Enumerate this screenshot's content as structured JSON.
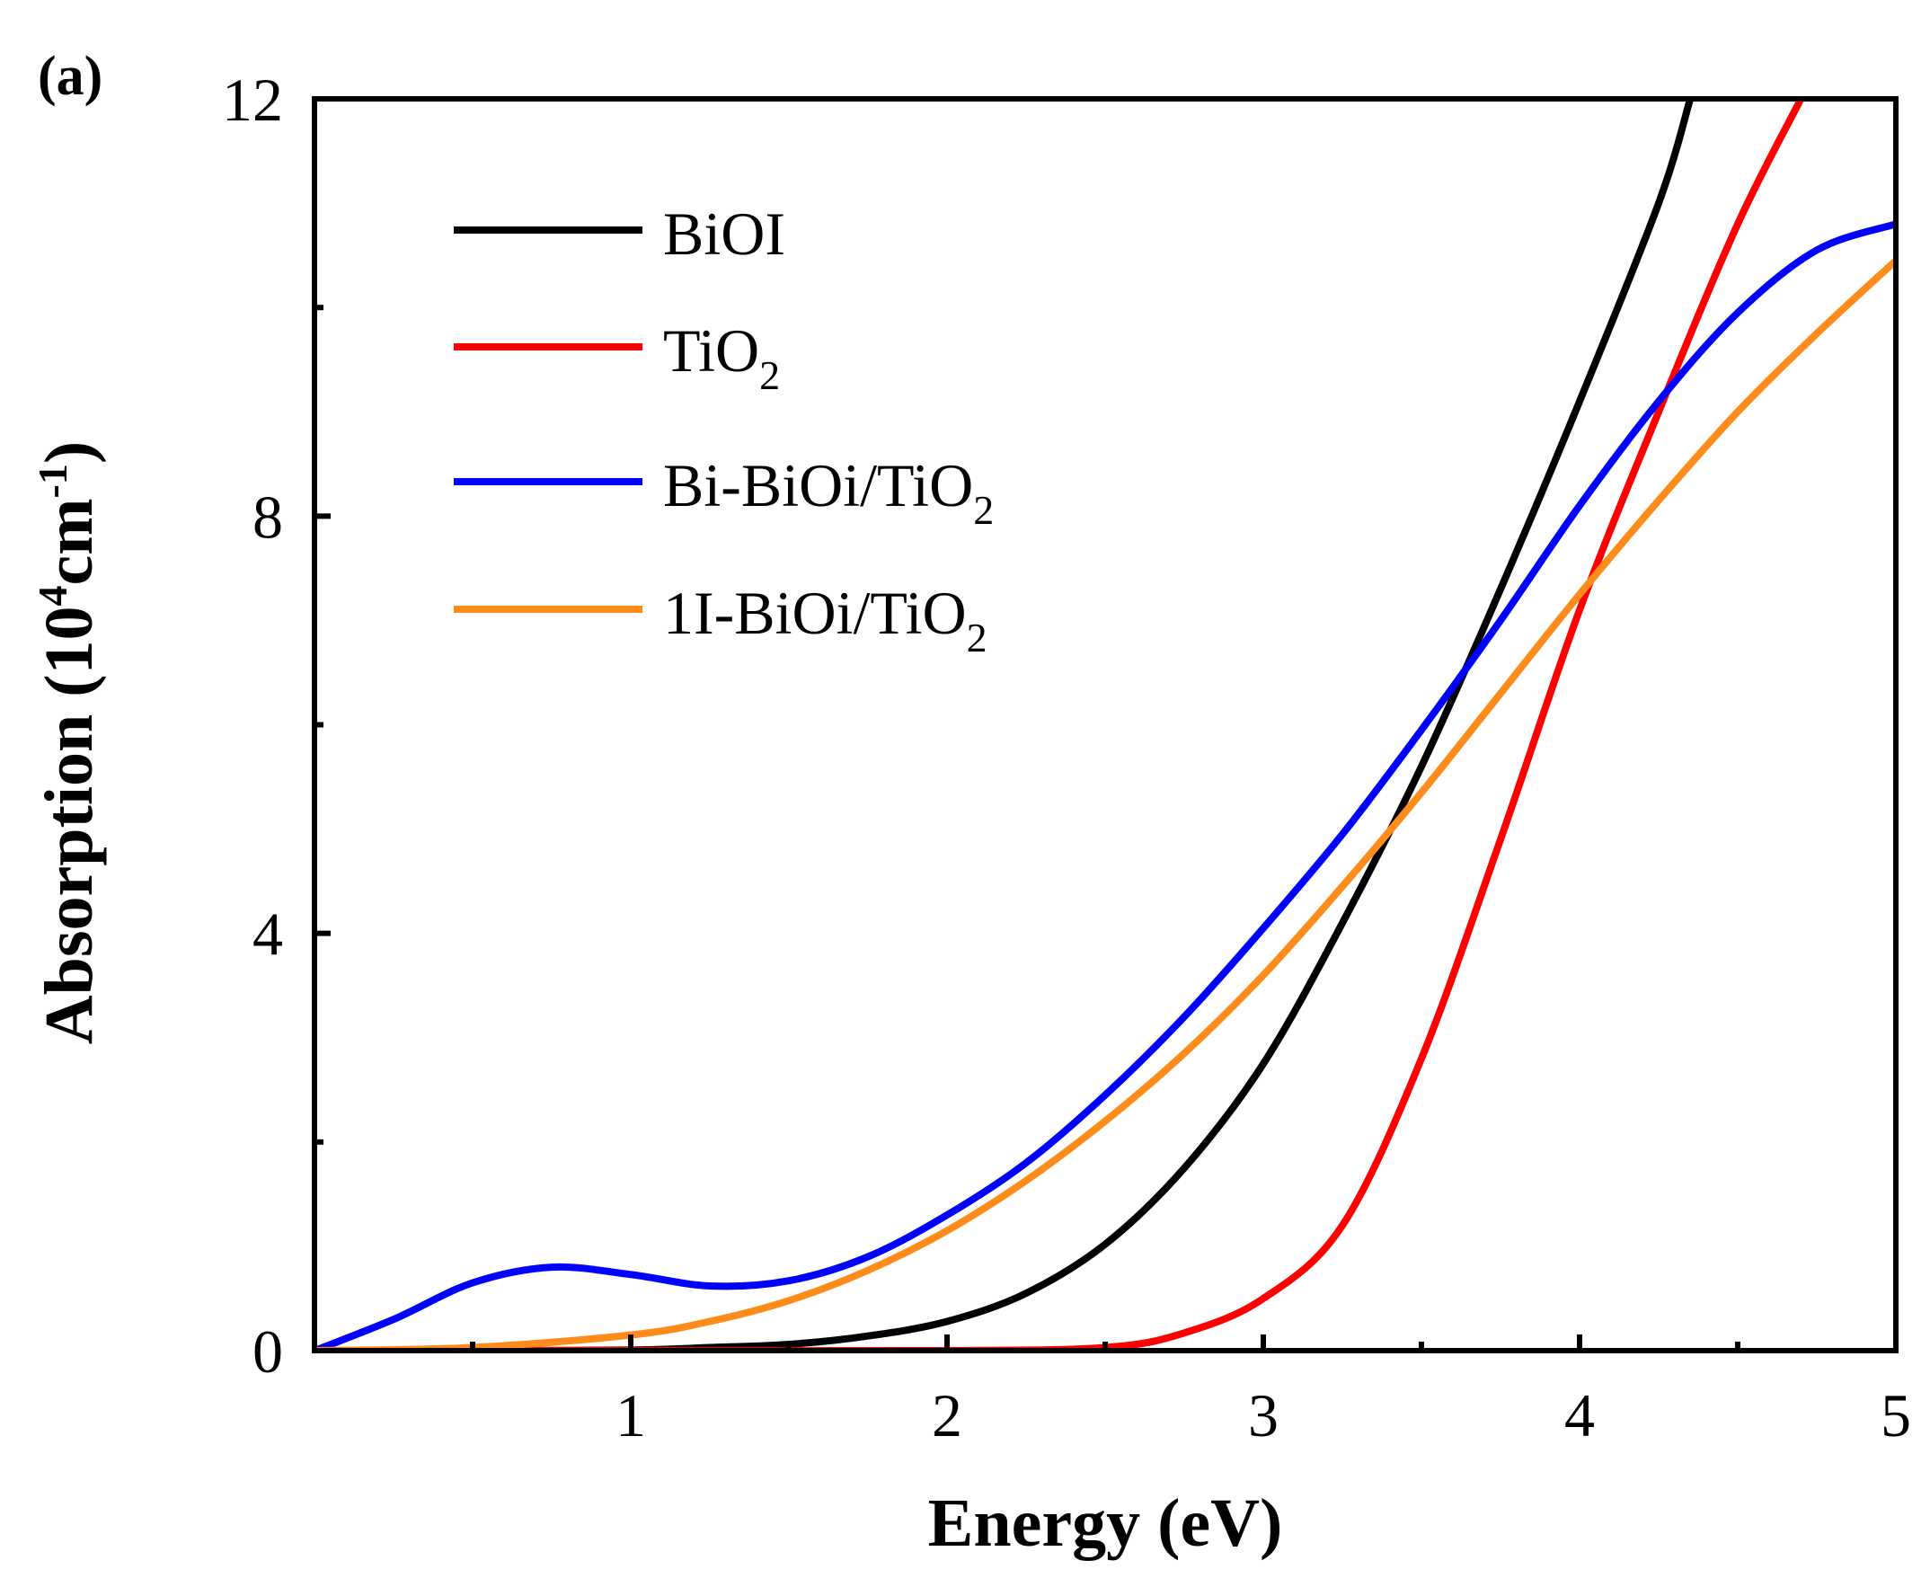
{
  "panel_label": "(a)",
  "chart_data": {
    "type": "line",
    "title": "",
    "xlabel": "Energy (eV)",
    "ylabel_main": "Absorption (10",
    "ylabel_sup1": "4",
    "ylabel_mid": "cm",
    "ylabel_sup2": "-1",
    "ylabel_end": ")",
    "xlim": [
      0,
      5
    ],
    "ylim": [
      0,
      12
    ],
    "x_ticks": [
      1,
      2,
      3,
      4,
      5
    ],
    "x_tick_labels": [
      "1",
      "2",
      "3",
      "4",
      "5"
    ],
    "x_minor_ticks": [
      0.5,
      1.5,
      2.5,
      3.5,
      4.5
    ],
    "y_ticks": [
      0,
      4,
      8,
      12
    ],
    "y_tick_labels": [
      "0",
      "4",
      "8",
      "12"
    ],
    "y_minor_ticks": [
      2,
      6,
      10
    ],
    "legend_position": "top-left",
    "series": [
      {
        "name": "BiOI",
        "label_main": "BiOI",
        "label_sub": "",
        "label_tail": "",
        "color": "#000000",
        "x": [
          0,
          0.5,
          1.0,
          1.25,
          1.5,
          1.75,
          2.0,
          2.25,
          2.5,
          2.75,
          3.0,
          3.25,
          3.5,
          3.75,
          4.0,
          4.25,
          4.35
        ],
        "y": [
          0,
          0,
          0.005,
          0.03,
          0.06,
          0.14,
          0.28,
          0.55,
          1.02,
          1.75,
          2.75,
          4.1,
          5.6,
          7.3,
          9.1,
          11.0,
          12.0
        ]
      },
      {
        "name": "TiO2",
        "label_main": "TiO",
        "label_sub": "2",
        "label_tail": "",
        "color": "#ff0000",
        "x": [
          0,
          1.0,
          2.0,
          2.5,
          2.75,
          3.0,
          3.25,
          3.5,
          3.75,
          4.0,
          4.25,
          4.5,
          4.7
        ],
        "y": [
          0,
          0,
          0,
          0.03,
          0.17,
          0.5,
          1.2,
          2.8,
          4.9,
          7.1,
          9.0,
          10.8,
          12.0
        ]
      },
      {
        "name": "Bi-BiOi/TiO2",
        "label_main": "Bi-BiOi/TiO",
        "label_sub": "2",
        "label_tail": "",
        "color": "#0000ff",
        "x": [
          0,
          0.25,
          0.5,
          0.75,
          1.0,
          1.25,
          1.5,
          1.75,
          2.0,
          2.25,
          2.5,
          2.75,
          3.0,
          3.25,
          3.5,
          3.75,
          4.0,
          4.25,
          4.5,
          4.75,
          5.0
        ],
        "y": [
          0,
          0.3,
          0.65,
          0.8,
          0.73,
          0.62,
          0.67,
          0.9,
          1.3,
          1.8,
          2.45,
          3.2,
          4.05,
          4.95,
          5.95,
          7.0,
          8.1,
          9.1,
          9.95,
          10.55,
          10.8
        ]
      },
      {
        "name": "1I-BiOi/TiO2",
        "label_main": "1I-BiOi/TiO",
        "label_sub": "2",
        "label_tail": "",
        "color": "#ff8c1a",
        "x": [
          0,
          0.5,
          1.0,
          1.25,
          1.5,
          1.75,
          2.0,
          2.25,
          2.5,
          2.75,
          3.0,
          3.25,
          3.5,
          3.75,
          4.0,
          4.25,
          4.5,
          4.75,
          5.0
        ],
        "y": [
          0,
          0.03,
          0.15,
          0.28,
          0.48,
          0.77,
          1.15,
          1.63,
          2.2,
          2.85,
          3.6,
          4.45,
          5.35,
          6.3,
          7.25,
          8.15,
          9.0,
          9.75,
          10.45
        ]
      }
    ]
  }
}
